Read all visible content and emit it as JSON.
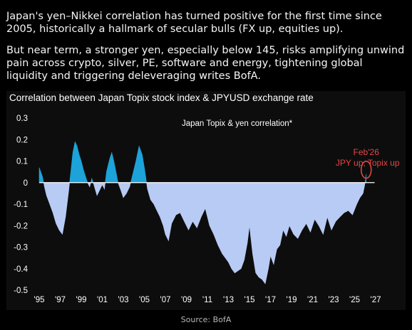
{
  "header": {
    "paragraph1": "Japan's yen–Nikkei correlation has turned positive for the first time since 2005, historically a hallmark of secular bulls (FX up, equities up).",
    "paragraph2": "But near term, a stronger yen, especially below 145, risks amplifying unwind pain across crypto, silver, PE, software and energy, tightening global liquidity and triggering deleveraging writes BofA."
  },
  "chart_data": {
    "type": "area",
    "title": "Correlation between Japan Topix stock index & JPYUSD exchange rate",
    "series_label": "Japan Topix & yen correlation*",
    "annotation": {
      "line1": "Feb'26",
      "line2": "JPY up, Topix up",
      "x": 2026.1,
      "y": 0.04
    },
    "xlim": [
      1995,
      2027
    ],
    "ylim": [
      -0.5,
      0.3
    ],
    "xticks": [
      {
        "value": 1995,
        "label": "'95"
      },
      {
        "value": 1997,
        "label": "'97"
      },
      {
        "value": 1999,
        "label": "'99"
      },
      {
        "value": 2001,
        "label": "'01"
      },
      {
        "value": 2003,
        "label": "'03"
      },
      {
        "value": 2005,
        "label": "'05"
      },
      {
        "value": 2007,
        "label": "'07"
      },
      {
        "value": 2009,
        "label": "'09"
      },
      {
        "value": 2011,
        "label": "'11"
      },
      {
        "value": 2013,
        "label": "'13"
      },
      {
        "value": 2015,
        "label": "'15"
      },
      {
        "value": 2017,
        "label": "'17"
      },
      {
        "value": 2019,
        "label": "'19"
      },
      {
        "value": 2021,
        "label": "'21"
      },
      {
        "value": 2023,
        "label": "'23"
      },
      {
        "value": 2025,
        "label": "'25"
      },
      {
        "value": 2027,
        "label": "'27"
      }
    ],
    "yticks": [
      {
        "value": 0.3,
        "label": "0.3"
      },
      {
        "value": 0.2,
        "label": "0.2"
      },
      {
        "value": 0.1,
        "label": "0.1"
      },
      {
        "value": 0,
        "label": "0"
      },
      {
        "value": -0.1,
        "label": "-0.1"
      },
      {
        "value": -0.2,
        "label": "-0.2"
      },
      {
        "value": -0.3,
        "label": "-0.3"
      },
      {
        "value": -0.4,
        "label": "-0.4"
      },
      {
        "value": -0.5,
        "label": "-0.5"
      }
    ],
    "colors": {
      "positive": "#1ca3d9",
      "negative": "#b8cbf4",
      "annotation": "#e04848",
      "zero_line": "#ffffff"
    },
    "x": [
      1995.0,
      1995.3,
      1995.5,
      1995.7,
      1996.0,
      1996.3,
      1996.6,
      1996.9,
      1997.2,
      1997.5,
      1997.8,
      1998.0,
      1998.2,
      1998.4,
      1998.6,
      1998.8,
      1999.0,
      1999.2,
      1999.4,
      1999.6,
      1999.8,
      2000.0,
      2000.2,
      2000.5,
      2000.8,
      2001.0,
      2001.2,
      2001.4,
      2001.7,
      2001.9,
      2002.1,
      2002.3,
      2002.5,
      2002.8,
      2003.0,
      2003.3,
      2003.6,
      2003.9,
      2004.2,
      2004.5,
      2004.8,
      2005.0,
      2005.3,
      2005.6,
      2005.9,
      2006.2,
      2006.5,
      2006.8,
      2007.0,
      2007.3,
      2007.6,
      2008.0,
      2008.4,
      2008.8,
      2009.2,
      2009.6,
      2010.0,
      2010.4,
      2010.8,
      2011.2,
      2011.6,
      2012.0,
      2012.4,
      2012.7,
      2013.0,
      2013.3,
      2013.6,
      2013.9,
      2014.2,
      2014.5,
      2014.8,
      2015.0,
      2015.3,
      2015.6,
      2015.9,
      2016.2,
      2016.5,
      2016.8,
      2017.0,
      2017.3,
      2017.6,
      2017.9,
      2018.2,
      2018.5,
      2018.8,
      2019.2,
      2019.6,
      2020.0,
      2020.4,
      2020.8,
      2021.2,
      2021.6,
      2022.0,
      2022.4,
      2022.8,
      2023.2,
      2023.6,
      2024.0,
      2024.4,
      2024.8,
      2025.2,
      2025.5,
      2025.8,
      2026.0,
      2026.1
    ],
    "values": [
      0.07,
      0.03,
      -0.02,
      -0.06,
      -0.1,
      -0.14,
      -0.19,
      -0.22,
      -0.24,
      -0.16,
      -0.04,
      0.05,
      0.14,
      0.19,
      0.17,
      0.13,
      0.1,
      0.06,
      0.03,
      0.0,
      -0.02,
      0.02,
      -0.01,
      -0.06,
      -0.03,
      -0.01,
      -0.03,
      0.05,
      0.11,
      0.14,
      0.1,
      0.05,
      0.0,
      -0.04,
      -0.07,
      -0.05,
      -0.02,
      0.04,
      0.1,
      0.17,
      0.13,
      0.07,
      -0.03,
      -0.08,
      -0.1,
      -0.13,
      -0.16,
      -0.2,
      -0.24,
      -0.27,
      -0.19,
      -0.15,
      -0.14,
      -0.18,
      -0.22,
      -0.18,
      -0.21,
      -0.16,
      -0.12,
      -0.2,
      -0.24,
      -0.29,
      -0.33,
      -0.35,
      -0.37,
      -0.4,
      -0.42,
      -0.41,
      -0.4,
      -0.36,
      -0.28,
      -0.2,
      -0.33,
      -0.42,
      -0.44,
      -0.45,
      -0.47,
      -0.4,
      -0.34,
      -0.38,
      -0.31,
      -0.29,
      -0.22,
      -0.25,
      -0.2,
      -0.24,
      -0.26,
      -0.22,
      -0.19,
      -0.23,
      -0.17,
      -0.2,
      -0.24,
      -0.16,
      -0.22,
      -0.18,
      -0.16,
      -0.14,
      -0.13,
      -0.15,
      -0.1,
      -0.07,
      -0.05,
      0.0,
      0.04
    ]
  },
  "source": "Source: BofA"
}
